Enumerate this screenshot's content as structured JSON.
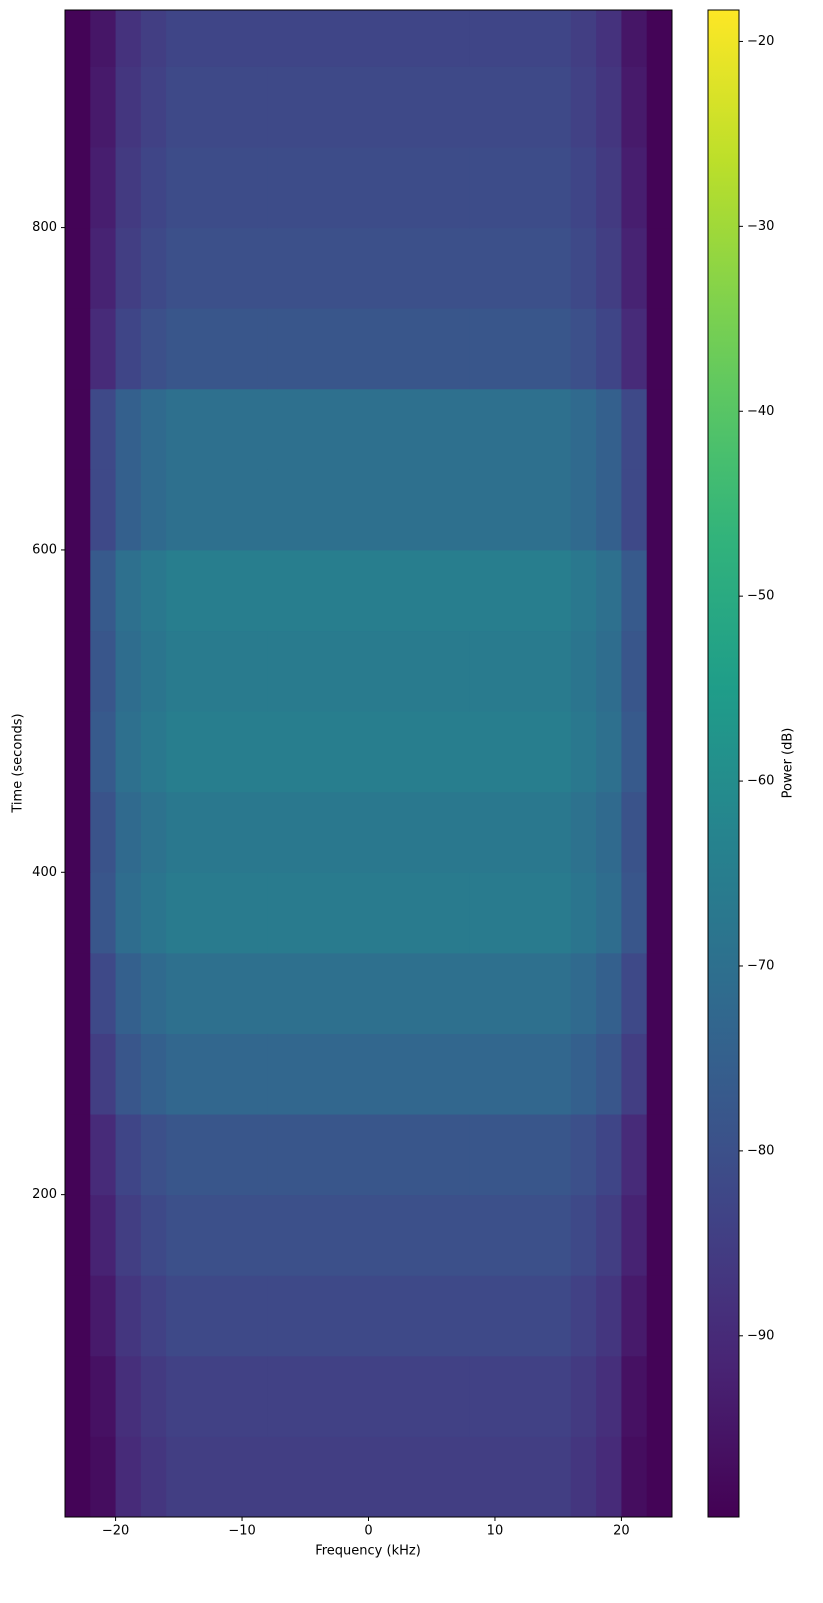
{
  "chart_data": {
    "type": "heatmap",
    "xlabel": "Frequency (kHz)",
    "ylabel": "Time (seconds)",
    "colorbar_label": "Power (dB)",
    "colormap": "viridis",
    "xlim": [
      -24,
      24
    ],
    "ylim": [
      0,
      935
    ],
    "clim": [
      -99.8,
      -18.3
    ],
    "xticks": [
      {
        "value": -20,
        "label": "−20"
      },
      {
        "value": -10,
        "label": "−10"
      },
      0,
      10,
      20
    ],
    "yticks": [
      200,
      400,
      600,
      800
    ],
    "cticks": [
      {
        "value": -90,
        "label": "−90"
      },
      {
        "value": -80,
        "label": "−80"
      },
      {
        "value": -70,
        "label": "−70"
      },
      {
        "value": -60,
        "label": "−60"
      },
      {
        "value": -50,
        "label": "−50"
      },
      {
        "value": -40,
        "label": "−40"
      },
      {
        "value": -30,
        "label": "−30"
      },
      {
        "value": -20,
        "label": "−20"
      }
    ],
    "xbins": [
      -24,
      -22,
      -20,
      -18,
      -16,
      -8,
      0,
      8,
      16,
      18,
      20,
      22,
      24
    ],
    "ybins": [
      0,
      50,
      100,
      150,
      200,
      250,
      300,
      350,
      400,
      450,
      500,
      550,
      600,
      650,
      700,
      750,
      800,
      850,
      900,
      935
    ],
    "z": [
      [
        -99,
        -97,
        -90,
        -87,
        -85,
        -85,
        -85,
        -85,
        -87,
        -90,
        -97,
        -99
      ],
      [
        -99,
        -96,
        -89,
        -86,
        -84,
        -84,
        -84,
        -84,
        -86,
        -89,
        -96,
        -99
      ],
      [
        -99,
        -94,
        -87,
        -84,
        -82,
        -82,
        -82,
        -82,
        -84,
        -87,
        -94,
        -99
      ],
      [
        -99,
        -92,
        -85,
        -82,
        -80,
        -80,
        -80,
        -80,
        -82,
        -85,
        -92,
        -99
      ],
      [
        -99,
        -90,
        -83,
        -80,
        -78,
        -78,
        -78,
        -78,
        -80,
        -83,
        -90,
        -99
      ],
      [
        -99,
        -85,
        -78,
        -75,
        -73,
        -73,
        -73,
        -73,
        -75,
        -78,
        -85,
        -99
      ],
      [
        -99,
        -82,
        -75,
        -72,
        -70,
        -70,
        -70,
        -70,
        -72,
        -75,
        -82,
        -99
      ],
      [
        -99,
        -78,
        -71,
        -68,
        -66,
        -66,
        -66,
        -66,
        -68,
        -71,
        -78,
        -99
      ],
      [
        -99,
        -79,
        -72,
        -69,
        -67,
        -67,
        -67,
        -67,
        -69,
        -72,
        -79,
        -99
      ],
      [
        -99,
        -77,
        -70,
        -67,
        -65,
        -65,
        -65,
        -65,
        -67,
        -70,
        -77,
        -99
      ],
      [
        -99,
        -78,
        -71,
        -68,
        -66,
        -66,
        -66,
        -66,
        -68,
        -71,
        -78,
        -99
      ],
      [
        -99,
        -77,
        -70,
        -67,
        -65,
        -65,
        -65,
        -65,
        -67,
        -70,
        -77,
        -99
      ],
      [
        -99,
        -82,
        -75,
        -72,
        -70,
        -70,
        -70,
        -70,
        -72,
        -75,
        -82,
        -99
      ],
      [
        -99,
        -82,
        -75,
        -72,
        -70,
        -70,
        -70,
        -70,
        -72,
        -75,
        -82,
        -99
      ],
      [
        -99,
        -90,
        -83,
        -80,
        -78,
        -78,
        -78,
        -78,
        -80,
        -83,
        -90,
        -99
      ],
      [
        -99,
        -92,
        -85,
        -82,
        -80,
        -80,
        -80,
        -80,
        -82,
        -85,
        -92,
        -99
      ],
      [
        -99,
        -93,
        -86,
        -83,
        -81,
        -81,
        -81,
        -81,
        -83,
        -86,
        -93,
        -99
      ],
      [
        -99,
        -94,
        -87,
        -84,
        -82,
        -82,
        -82,
        -82,
        -84,
        -87,
        -94,
        -99
      ],
      [
        -99,
        -95,
        -88,
        -85,
        -83,
        -83,
        -83,
        -83,
        -85,
        -88,
        -95,
        -99
      ]
    ]
  }
}
